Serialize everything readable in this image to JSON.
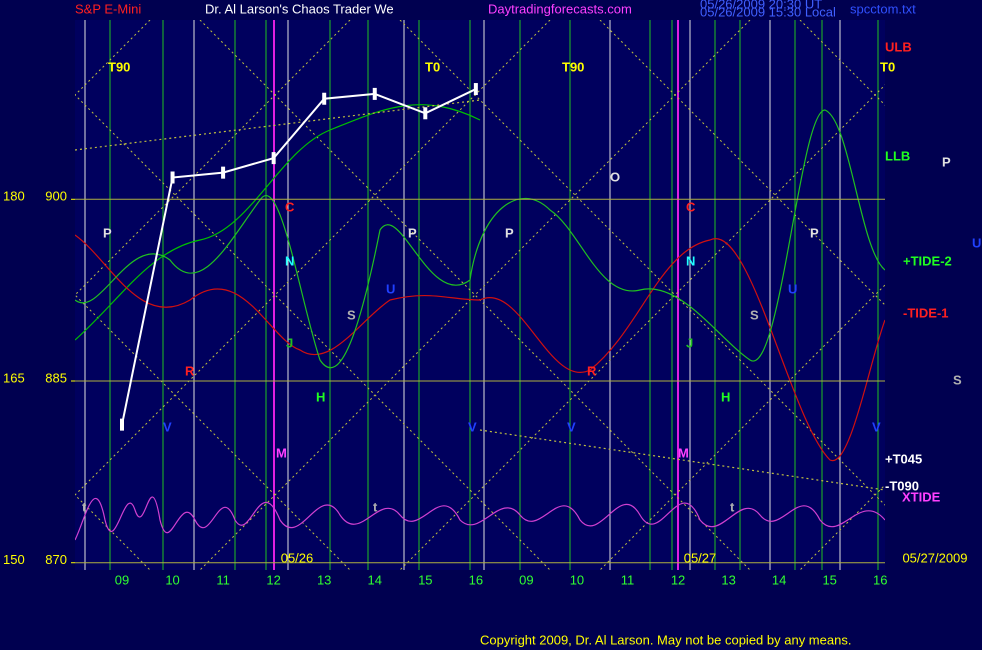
{
  "chart_data": {
    "type": "line",
    "title": "S&P E-Mini",
    "subtitle": "Dr. Al Larson's Chaos Trader We",
    "site": "Daytradingforecasts.com",
    "timestamps": [
      "05/26/2009 20:30 UT",
      "05/26/2009 15:30 Local"
    ],
    "file": "spcctom.txt",
    "categories": [
      "09",
      "10",
      "11",
      "12",
      "13",
      "14",
      "15",
      "16",
      "09",
      "10",
      "11",
      "12",
      "13",
      "14",
      "15",
      "16"
    ],
    "day_labels": [
      "05/26",
      "05/27",
      "05/27/2009"
    ],
    "series": [
      {
        "name": "S&P E-Mini",
        "color": "#ffffff",
        "values": [
          881.4,
          901.8,
          902.2,
          903.4,
          908.3,
          908.7,
          907.1,
          909.1,
          null,
          null,
          null,
          null,
          null,
          null,
          null,
          null
        ]
      }
    ],
    "ylim": [
      869.4,
      914.8
    ],
    "yticks": [
      870,
      885,
      900
    ],
    "y2lim": [
      149.4,
      194.8
    ],
    "y2ticks": [
      150,
      165,
      180
    ],
    "annotations": [
      "T90",
      "T0",
      "T90",
      "T0",
      "ULB",
      "LLB",
      "P",
      "P",
      "C",
      "P",
      "P",
      "O",
      "C",
      "P",
      "U",
      "+TIDE-2",
      "N",
      "N",
      "U",
      "U",
      "-TIDE-1",
      "S",
      "S",
      "J",
      "J",
      "R",
      "R",
      "S",
      "H",
      "H",
      "V",
      "V",
      "V",
      "V",
      "M",
      "M",
      "+T045",
      "-T090",
      "XTIDE",
      "t",
      "t",
      "t"
    ],
    "copyright": "Copyright 2009, Dr. Al Larson. May not be copied by any means."
  }
}
